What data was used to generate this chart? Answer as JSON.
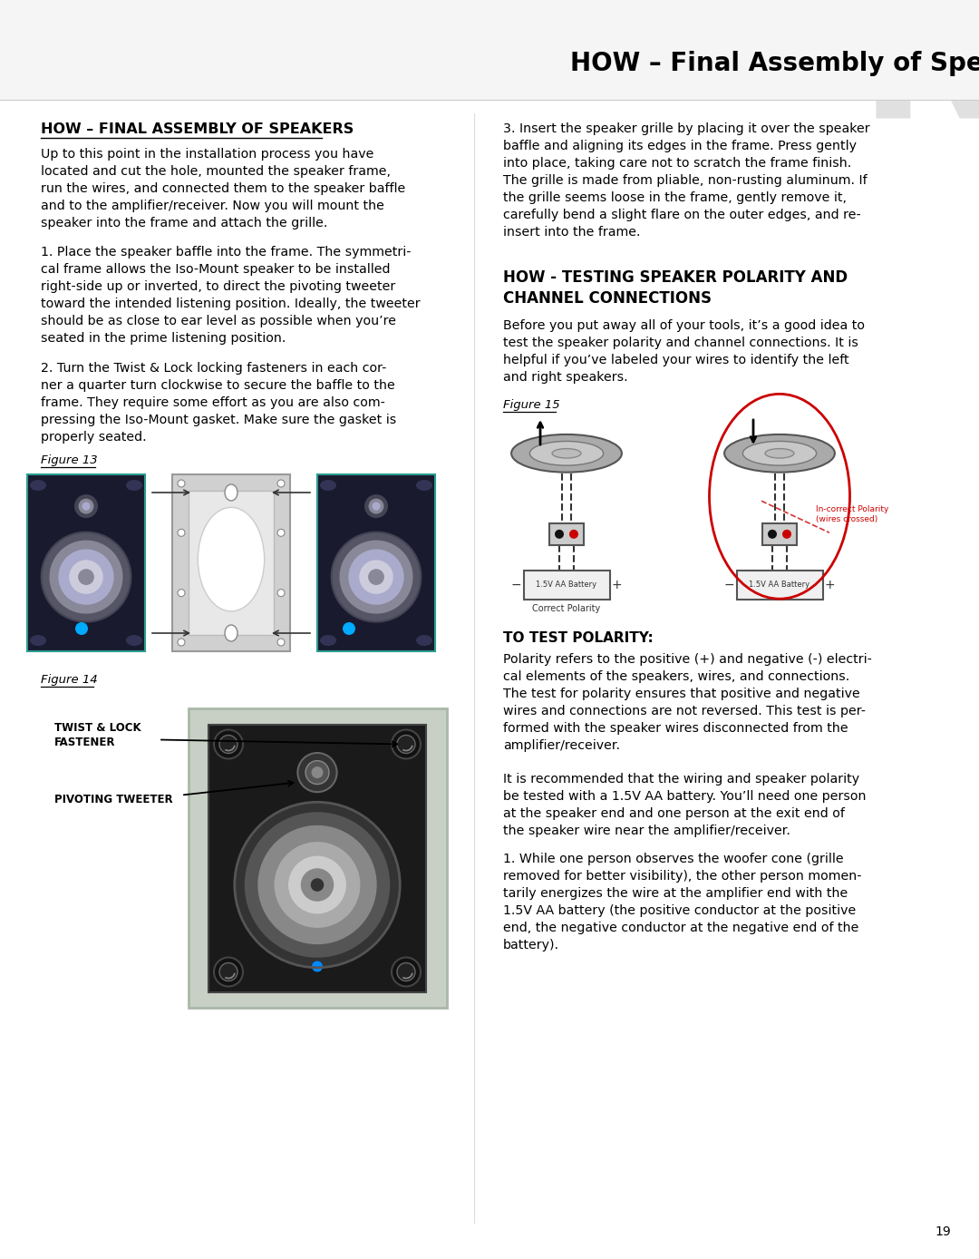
{
  "page_title": "HOW – Final Assembly of Speakers",
  "page_number": "19",
  "bg_color": "#ffffff",
  "russound_letter_color": "#e0e0e0",
  "section1_heading": "HOW – FINAL ASSEMBLY OF SPEAKERS",
  "figure13_label": "Figure 13",
  "figure14_label": "Figure 14",
  "label_twist": "TWIST & LOCK\nFASTENER",
  "label_tweeter": "PIVOTING TWEETER",
  "section2_heading_line1": "HOW - TESTING SPEAKER POLARITY AND",
  "section2_heading_line2": "CHANNEL CONNECTIONS",
  "figure15_label": "Figure 15",
  "body_grille": "3. Insert the speaker grille by placing it over the speaker\nbaffle and aligning its edges in the frame. Press gently\ninto place, taking care not to scratch the frame finish.\nThe grille is made from pliable, non-rusting aluminum. If\nthe grille seems loose in the frame, gently remove it,\ncarefully bend a slight flare on the outer edges, and re-\ninsert into the frame.",
  "body_before": "Before you put away all of your tools, it’s a good idea to\ntest the speaker polarity and channel connections. It is\nhelpful if you’ve labeled your wires to identify the left\nand right speakers.",
  "body1_left": "Up to this point in the installation process you have\nlocated and cut the hole, mounted the speaker frame,\nrun the wires, and connected them to the speaker baffle\nand to the amplifier/receiver. Now you will mount the\nspeaker into the frame and attach the grille.",
  "body2_left": "1. Place the speaker baffle into the frame. The symmetri-\ncal frame allows the Iso-Mount speaker to be installed\nright-side up or inverted, to direct the pivoting tweeter\ntoward the intended listening position. Ideally, the tweeter\nshould be as close to ear level as possible when you’re\nseated in the prime listening position.",
  "body3_left": "2. Turn the Twist & Lock locking fasteners in each cor-\nner a quarter turn clockwise to secure the baffle to the\nframe. They require some effort as you are also com-\npressing the Iso-Mount gasket. Make sure the gasket is\nproperly seated.",
  "polarity_head": "TO TEST POLARITY:",
  "polarity_body1": "Polarity refers to the positive (+) and negative (-) electri-\ncal elements of the speakers, wires, and connections.\nThe test for polarity ensures that positive and negative\nwires and connections are not reversed. This test is per-\nformed with the speaker wires disconnected from the\namplifier/receiver.",
  "polarity_body2": "It is recommended that the wiring and speaker polarity\nbe tested with a 1.5V AA battery. You’ll need one person\nat the speaker end and one person at the exit end of\nthe speaker wire near the amplifier/receiver.",
  "polarity_body3": "1. While one person observes the woofer cone (grille\nremoved for better visibility), the other person momen-\ntarily energizes the wire at the amplifier end with the\n1.5V AA battery (the positive conductor at the positive\nend, the negative conductor at the negative end of the\nbattery)."
}
